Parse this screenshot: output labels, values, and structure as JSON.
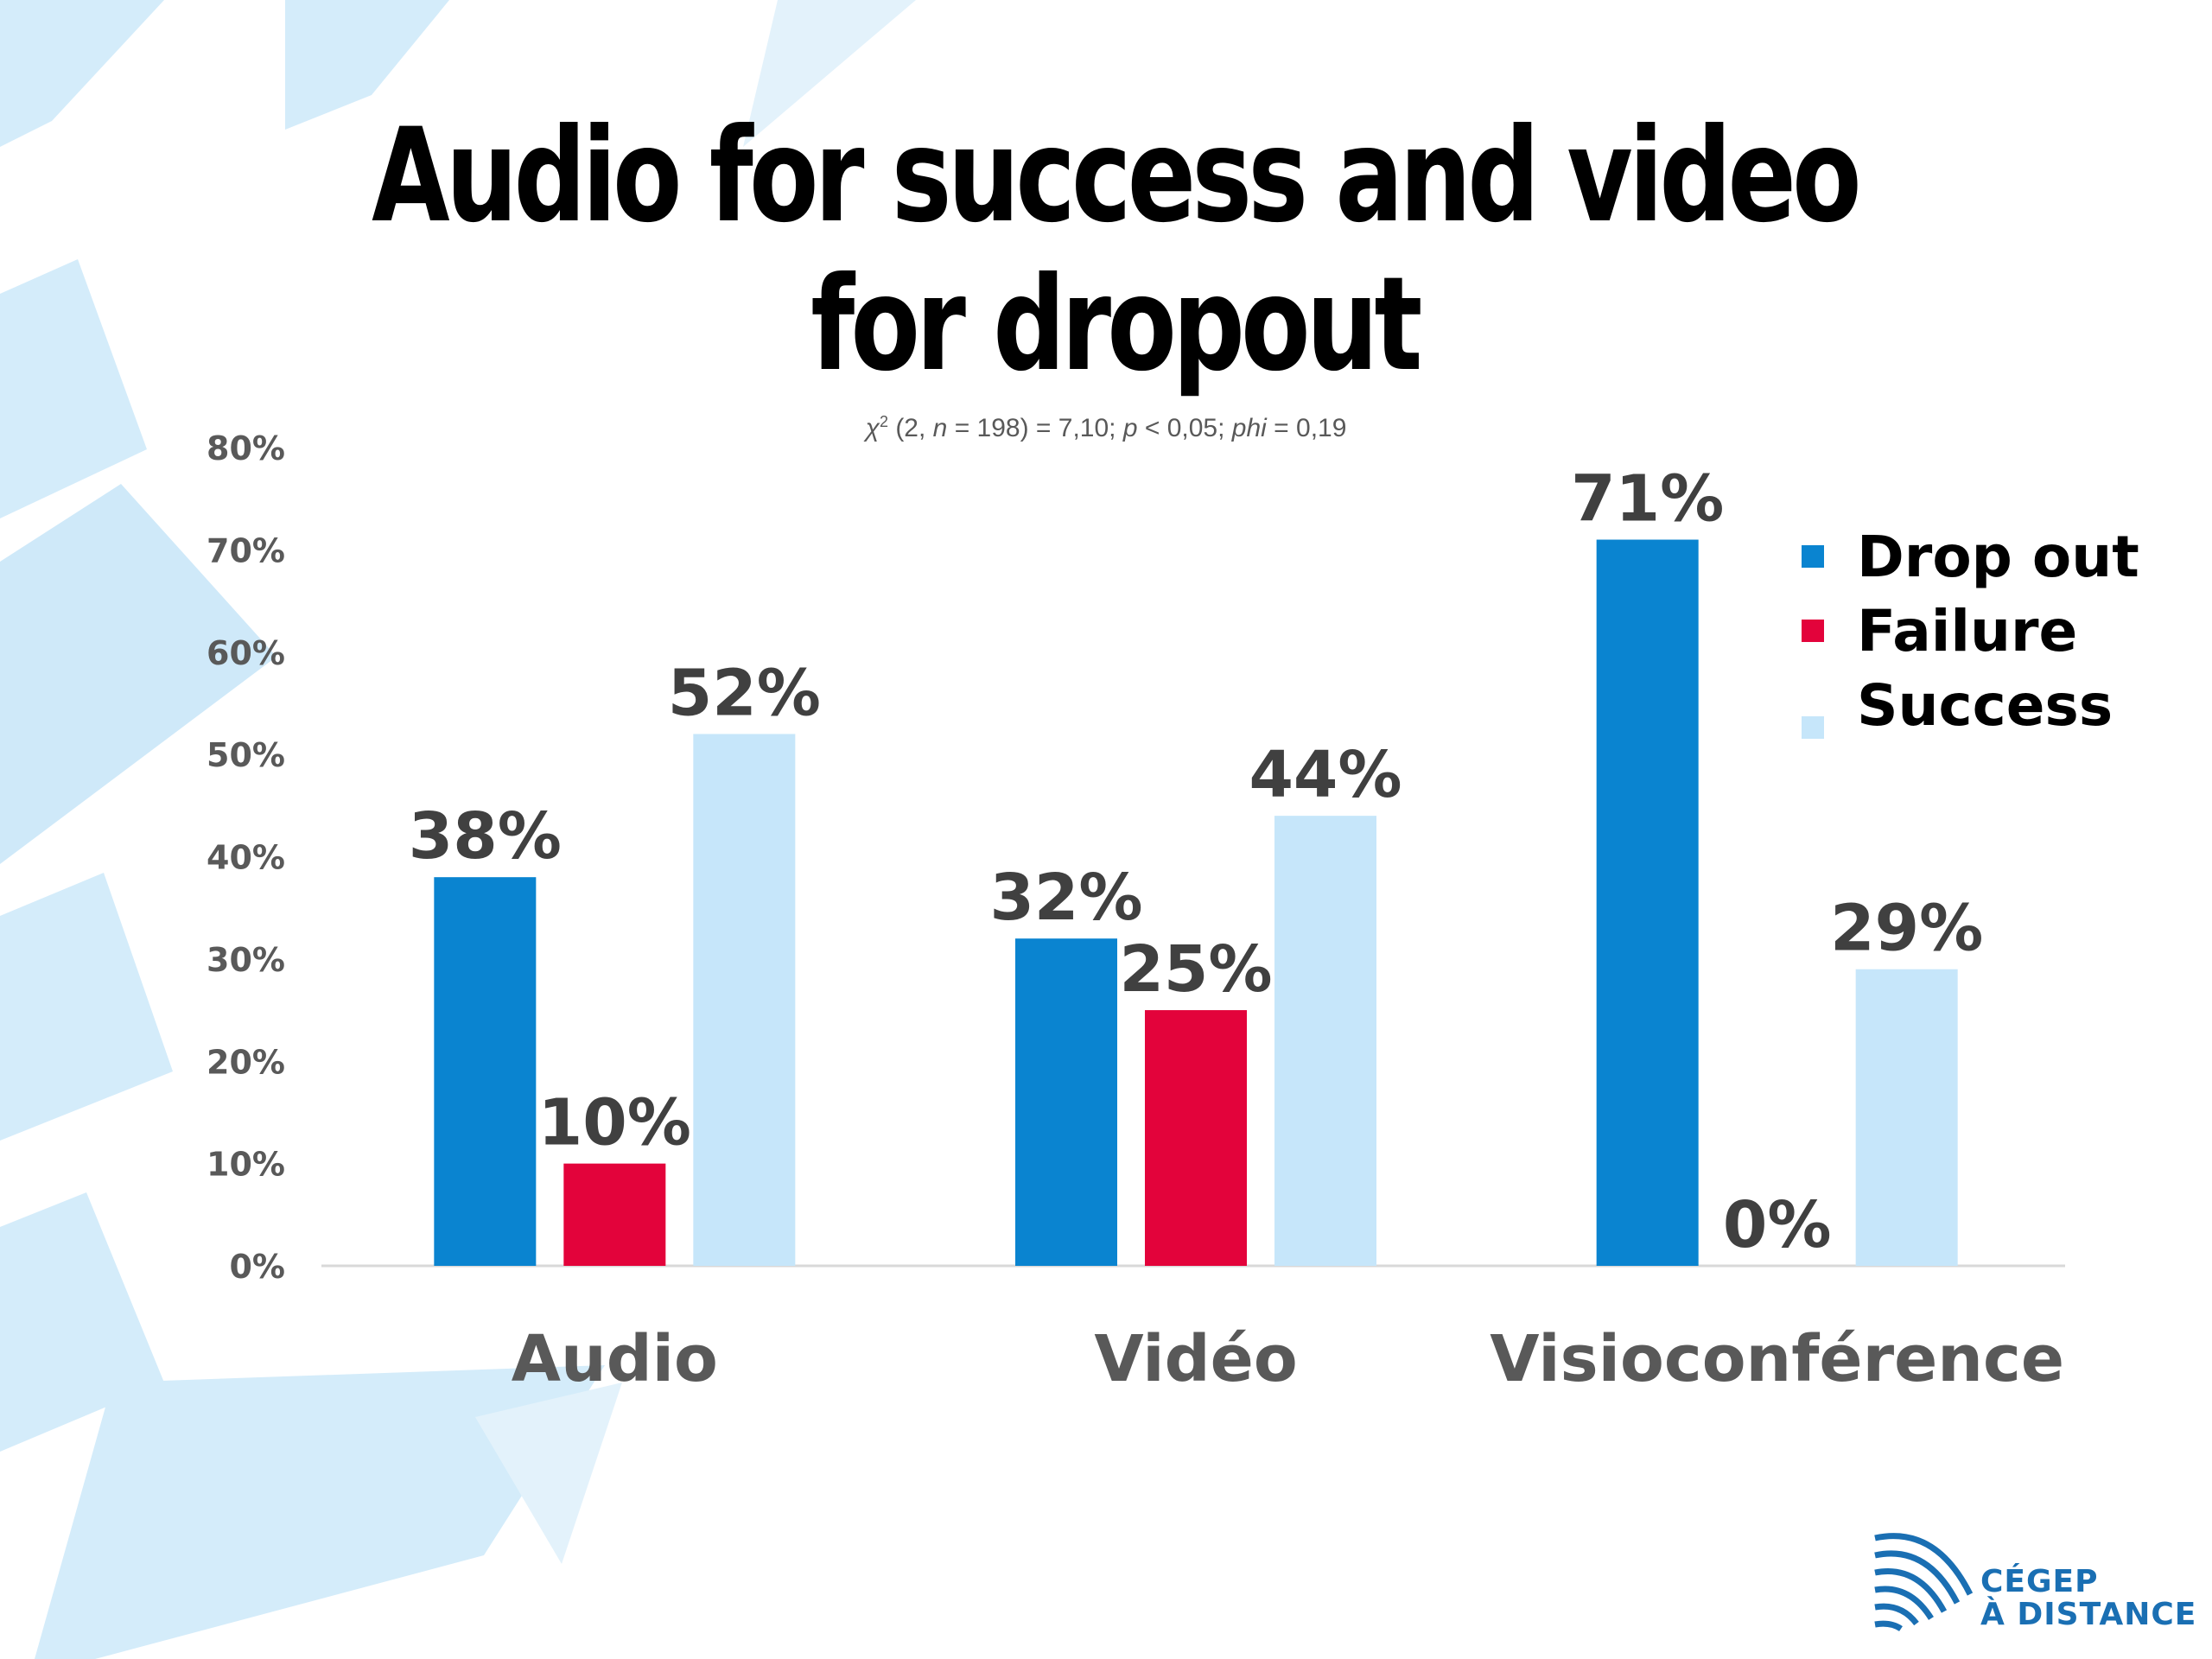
{
  "slide": {
    "title": "Audio for success and video for dropout",
    "stat": {
      "chi": "χ",
      "sup": "2",
      "part1": " (2, ",
      "n": "n",
      "part2": " = 198) = 7,10; ",
      "p": "p",
      "part3": " < 0,05; ",
      "phi": "phi",
      "part4": " = 0,19"
    },
    "logo": {
      "line1": "CÉGEP",
      "line2": "À DISTANCE",
      "icon": "cegep-logo-icon"
    }
  },
  "chart_data": {
    "type": "bar",
    "title": "Audio for success and video for dropout",
    "categories": [
      "Audio",
      "Vidéo",
      "Visioconférence"
    ],
    "series": [
      {
        "name": "Drop out",
        "values": [
          38,
          32,
          71
        ],
        "labels": [
          "38%",
          "32%",
          "71%"
        ],
        "color": "#0a84d0"
      },
      {
        "name": "Failure",
        "values": [
          10,
          25,
          0
        ],
        "labels": [
          "10%",
          "25%",
          "0%"
        ],
        "color": "#e3033b"
      },
      {
        "name": "Success",
        "values": [
          52,
          44,
          29
        ],
        "labels": [
          "52%",
          "44%",
          "29%"
        ],
        "color": "#c6e6fa"
      }
    ],
    "yticks": [
      "0%",
      "10%",
      "20%",
      "30%",
      "40%",
      "50%",
      "60%",
      "70%",
      "80%"
    ],
    "ylim": [
      0,
      80
    ],
    "grid": false,
    "legend": "right"
  }
}
